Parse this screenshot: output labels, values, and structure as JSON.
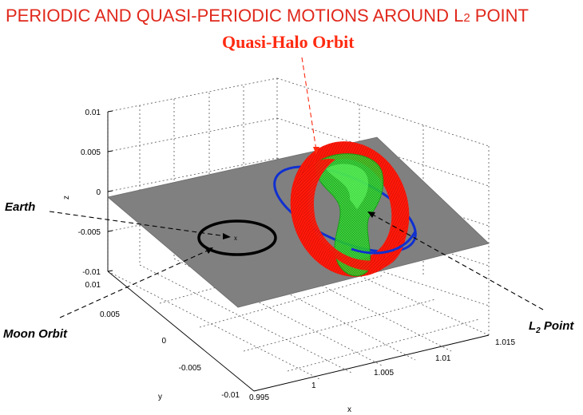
{
  "title": "PERIODIC AND QUASI-PERIODIC MOTIONS AROUND L",
  "title_sub": "2",
  "title_end": " POINT",
  "colors": {
    "title": "#e0281c",
    "quasi_halo_label": "#ff2a10",
    "plane": "#808080",
    "red_torus": "#ff1a0a",
    "green_torus": "#22dd22",
    "halo_orbit": "#1030d0",
    "moon_orbit": "#000000"
  },
  "annotations": {
    "quasi_halo": "Quasi-Halo Orbit",
    "earth": "Earth",
    "moon_orbit": "Moon Orbit",
    "l2_prefix": "L",
    "l2_sub": "2",
    "l2_suffix": " Point",
    "earth_marker": "x"
  },
  "axes": {
    "z": {
      "label": "z",
      "ticks": [
        "0.01",
        "0.005",
        "0",
        "-0.005",
        "-0.01"
      ]
    },
    "y": {
      "label": "y",
      "ticks": [
        "0.01",
        "0.005",
        "0",
        "-0.005",
        "-0.01"
      ]
    },
    "x": {
      "label": "x",
      "ticks": [
        "0.995",
        "1",
        "1.005",
        "1.01",
        "1.015"
      ]
    }
  }
}
